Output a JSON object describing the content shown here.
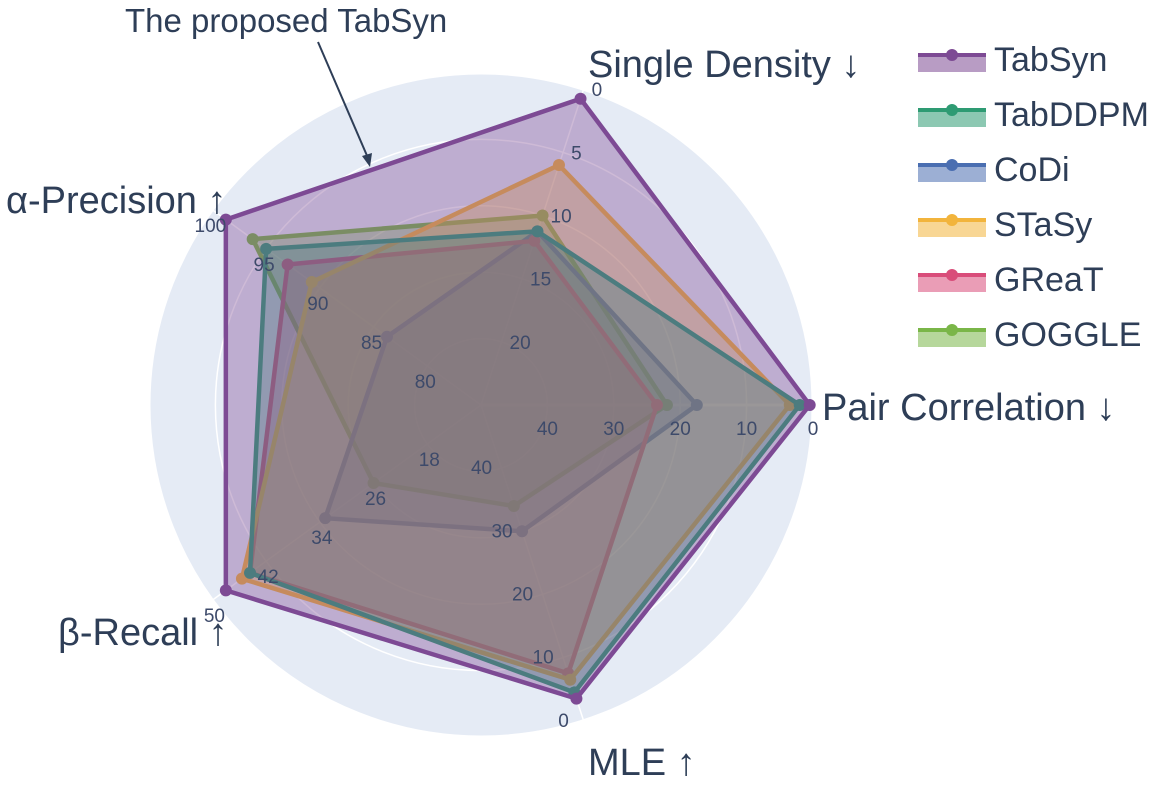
{
  "chart_data": {
    "type": "radar",
    "title": "",
    "annotation": "The proposed TabSyn",
    "axes": [
      {
        "name": "Pair Correlation",
        "arrow": "↓",
        "ticks": [
          "40",
          "30",
          "20",
          "10",
          "0"
        ],
        "range": [
          40,
          0
        ]
      },
      {
        "name": "Single Density",
        "arrow": "↓",
        "ticks": [
          "20",
          "15",
          "10",
          "5",
          "0"
        ],
        "range": [
          20,
          0
        ]
      },
      {
        "name": "α-Precision",
        "arrow": "↑",
        "ticks": [
          "80",
          "85",
          "90",
          "95",
          "100"
        ],
        "range": [
          80,
          100
        ]
      },
      {
        "name": "β-Recall",
        "arrow": "↑",
        "ticks": [
          "18",
          "26",
          "34",
          "42",
          "50"
        ],
        "range": [
          18,
          50
        ]
      },
      {
        "name": "MLE",
        "arrow": "↑",
        "ticks": [
          "40",
          "30",
          "20",
          "10",
          "0"
        ],
        "range": [
          40,
          0
        ]
      }
    ],
    "series": [
      {
        "name": "GOGGLE",
        "color": "#7ab648",
        "values": [
          0.56,
          0.6,
          0.85,
          0.4,
          0.32
        ]
      },
      {
        "name": "CoDi",
        "color": "#4a6eb1",
        "values": [
          0.65,
          0.55,
          0.35,
          0.58,
          0.4
        ]
      },
      {
        "name": "GReaT",
        "color": "#d94d7a",
        "values": [
          0.53,
          0.52,
          0.72,
          0.86,
          0.85
        ]
      },
      {
        "name": "STaSy",
        "color": "#f2b43c",
        "values": [
          0.93,
          0.76,
          0.63,
          0.89,
          0.87
        ]
      },
      {
        "name": "TabDDPM",
        "color": "#2e9b73",
        "values": [
          0.96,
          0.55,
          0.8,
          0.86,
          0.91
        ]
      },
      {
        "name": "TabSyn",
        "color": "#7d4a94",
        "values": [
          0.99,
          0.97,
          0.95,
          0.95,
          0.93
        ]
      }
    ],
    "legend": [
      "TabSyn",
      "TabDDPM",
      "CoDi",
      "STaSy",
      "GReaT",
      "GOGGLE"
    ],
    "legend_position": "right"
  }
}
